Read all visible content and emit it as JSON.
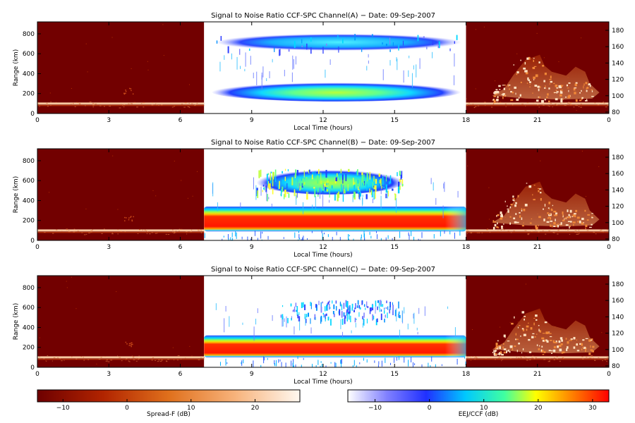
{
  "chart_data": [
    {
      "type": "heatmap",
      "title": "Signal to Noise Ratio CCF-SPC Channel(A) − Date: 09-Sep-2007",
      "xlabel": "Local Time (hours)",
      "ylabel": "Range (km)",
      "xlim": [
        0,
        24
      ],
      "ylim": [
        0,
        920
      ],
      "xticks": [
        "0",
        "3",
        "6",
        "9",
        "12",
        "15",
        "18",
        "21",
        "0"
      ],
      "yticks": [
        "0",
        "200",
        "400",
        "600",
        "800"
      ],
      "y2ticks": [
        "80",
        "100",
        "120",
        "140",
        "160",
        "180"
      ],
      "segments": [
        {
          "name": "Spread-F",
          "x": [
            0,
            7
          ]
        },
        {
          "name": "EEJ/CCF",
          "x": [
            7,
            18
          ]
        },
        {
          "name": "Spread-F",
          "x": [
            18,
            24
          ]
        }
      ],
      "features": [
        {
          "x": [
            7.5,
            17.8
          ],
          "y": [
            630,
            800
          ],
          "peak_db": 8
        },
        {
          "x": [
            7.3,
            17.8
          ],
          "y": [
            120,
            320
          ],
          "peak_db": 14
        }
      ]
    },
    {
      "type": "heatmap",
      "title": "Signal to Noise Ratio CCF-SPC Channel(B) − Date: 09-Sep-2007",
      "xlabel": "Local Time (hours)",
      "ylabel": "Range (km)",
      "xlim": [
        0,
        24
      ],
      "ylim": [
        0,
        920
      ],
      "xticks": [
        "0",
        "3",
        "6",
        "9",
        "12",
        "15",
        "18",
        "21",
        "0"
      ],
      "yticks": [
        "0",
        "200",
        "400",
        "600",
        "800"
      ],
      "y2ticks": [
        "80",
        "100",
        "120",
        "140",
        "160",
        "180"
      ],
      "segments": [
        {
          "name": "Spread-F",
          "x": [
            0,
            7
          ]
        },
        {
          "name": "EEJ/CCF",
          "x": [
            7,
            18
          ]
        },
        {
          "name": "Spread-F",
          "x": [
            18,
            24
          ]
        }
      ],
      "features": [
        {
          "x": [
            9.2,
            15.4
          ],
          "y": [
            460,
            720
          ],
          "peak_db": 12
        },
        {
          "x": [
            7.0,
            18.0
          ],
          "y": [
            90,
            340
          ],
          "peak_db": 30
        }
      ]
    },
    {
      "type": "heatmap",
      "title": "Signal to Noise Ratio CCF-SPC Channel(C) − Date: 09-Sep-2007",
      "xlabel": "Local Time (hours)",
      "ylabel": "Range (km)",
      "xlim": [
        0,
        24
      ],
      "ylim": [
        0,
        920
      ],
      "xticks": [
        "0",
        "3",
        "6",
        "9",
        "12",
        "15",
        "18",
        "21",
        "0"
      ],
      "yticks": [
        "0",
        "200",
        "400",
        "600",
        "800"
      ],
      "y2ticks": [
        "80",
        "100",
        "120",
        "140",
        "160",
        "180"
      ],
      "segments": [
        {
          "name": "Spread-F",
          "x": [
            0,
            7
          ]
        },
        {
          "name": "EEJ/CCF",
          "x": [
            7,
            18
          ]
        },
        {
          "name": "Spread-F",
          "x": [
            18,
            24
          ]
        }
      ],
      "features": [
        {
          "x": [
            10.2,
            15.2
          ],
          "y": [
            480,
            680
          ],
          "peak_db": 5
        },
        {
          "x": [
            7.0,
            18.0
          ],
          "y": [
            100,
            320
          ],
          "peak_db": 30
        }
      ]
    }
  ],
  "colorbars": [
    {
      "label": "Spread-F (dB)",
      "ticks": [
        "−10",
        "0",
        "10",
        "20"
      ],
      "range": [
        -14,
        27
      ],
      "colors": [
        "#6e0000",
        "#b12400",
        "#e0701c",
        "#f7b27a",
        "#fff8f0"
      ]
    },
    {
      "label": "EEJ/CCF (dB)",
      "ticks": [
        "−10",
        "0",
        "10",
        "20",
        "30"
      ],
      "range": [
        -15,
        33
      ],
      "colors": [
        "#ffffff",
        "#8080ff",
        "#2030ff",
        "#00c8ff",
        "#40ffa0",
        "#ffff00",
        "#ff8000",
        "#ff0000"
      ]
    }
  ]
}
